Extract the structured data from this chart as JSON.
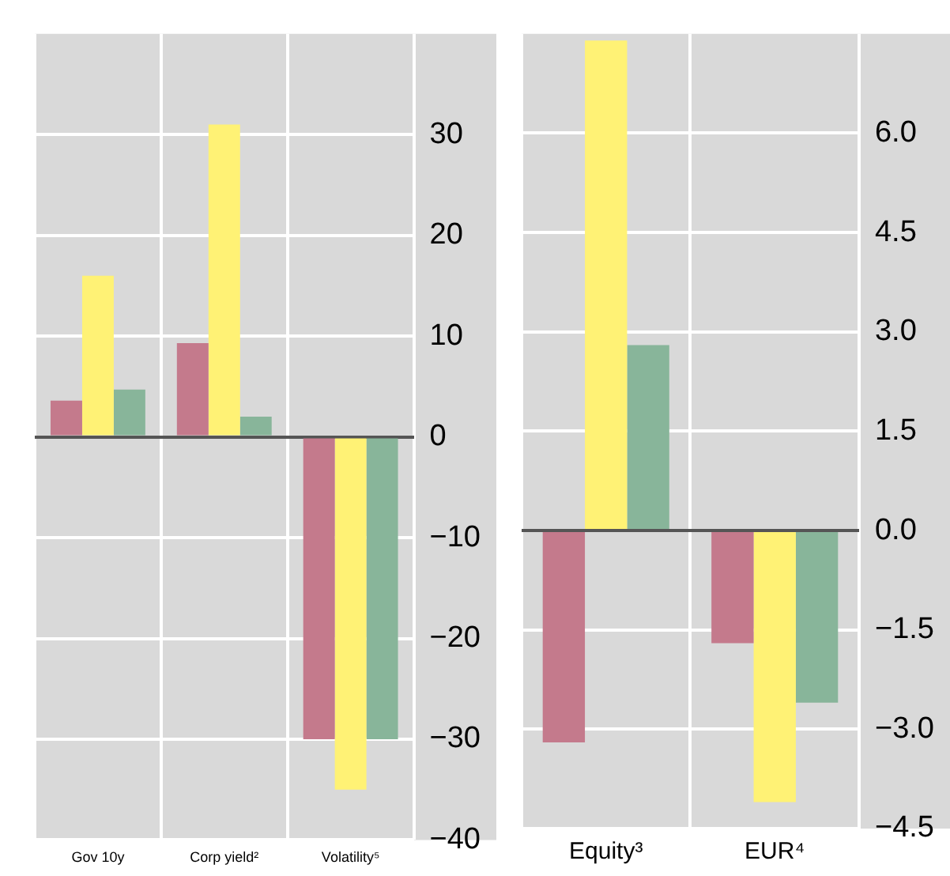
{
  "chart_data": [
    {
      "type": "bar",
      "categories": [
        "Gov 10y",
        "Corp yield²",
        "Volatility⁵"
      ],
      "series": [
        {
          "color": "#c47a8c",
          "values": [
            3.6,
            9.3,
            -30
          ]
        },
        {
          "color": "#fff275",
          "values": [
            16,
            31,
            -35
          ]
        },
        {
          "color": "#88b59a",
          "values": [
            4.7,
            2,
            -30
          ]
        }
      ],
      "ylim": [
        -40,
        40
      ],
      "yticks": [
        -40,
        -30,
        -20,
        -10,
        0,
        10,
        20,
        30
      ],
      "grid": true,
      "legend": false
    },
    {
      "type": "bar",
      "categories": [
        "Equity³",
        "EUR⁴"
      ],
      "series": [
        {
          "color": "#c47a8c",
          "values": [
            -3.2,
            -1.7
          ]
        },
        {
          "color": "#fff275",
          "values": [
            7.4,
            -4.1
          ]
        },
        {
          "color": "#88b59a",
          "values": [
            2.8,
            -2.6
          ]
        }
      ],
      "ylim": [
        -4.5,
        7.5
      ],
      "yticks": [
        {
          "value": -4.5,
          "label": "−4.5"
        },
        {
          "value": -3,
          "label": "−3.0"
        },
        {
          "value": -1.5,
          "label": "−1.5"
        },
        {
          "value": 0,
          "label": "0.0"
        },
        {
          "value": 1.5,
          "label": "1.5"
        },
        {
          "value": 3,
          "label": "3.0"
        },
        {
          "value": 4.5,
          "label": "4.5"
        },
        {
          "value": 6,
          "label": "6.0"
        }
      ],
      "grid": true,
      "legend": false
    }
  ]
}
